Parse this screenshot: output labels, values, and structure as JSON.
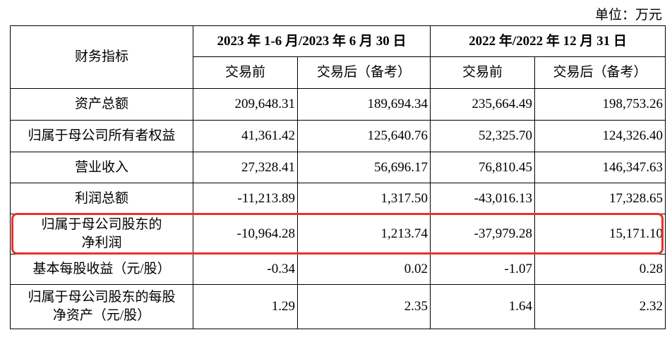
{
  "header": {
    "unit": "单位：万元"
  },
  "table": {
    "corner": "财务指标",
    "groups": [
      "2023 年 1-6 月/2023 年 6 月 30 日",
      "2022 年/2022 年 12 月 31 日"
    ],
    "subheaders": [
      "交易前",
      "交易后（备考）",
      "交易前",
      "交易后（备考）"
    ],
    "rows": [
      {
        "label": "资产总额",
        "values": [
          "209,648.31",
          "189,694.34",
          "235,664.49",
          "198,753.26"
        ]
      },
      {
        "label": "归属于母公司所有者权益",
        "values": [
          "41,361.42",
          "125,640.76",
          "52,325.70",
          "124,326.40"
        ]
      },
      {
        "label": "营业收入",
        "values": [
          "27,328.41",
          "56,696.17",
          "76,810.45",
          "146,347.63"
        ]
      },
      {
        "label": "利润总额",
        "values": [
          "-11,213.89",
          "1,317.50",
          "-43,016.13",
          "17,328.65"
        ]
      },
      {
        "label": "归属于母公司股东的\n净利润",
        "values": [
          "-10,964.28",
          "1,213.74",
          "-37,979.28",
          "15,171.10"
        ]
      },
      {
        "label": "基本每股收益（元/股）",
        "values": [
          "-0.34",
          "0.02",
          "-1.07",
          "0.28"
        ]
      },
      {
        "label": "归属于母公司股东的每股\n净资产（元/股）",
        "values": [
          "1.29",
          "2.35",
          "1.64",
          "2.32"
        ]
      }
    ]
  }
}
